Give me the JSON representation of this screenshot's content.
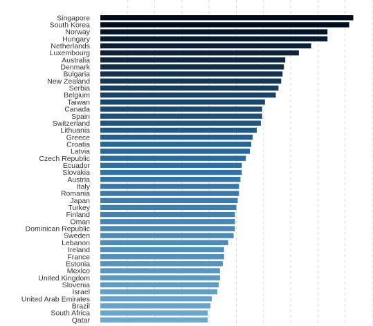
{
  "chart_data": {
    "type": "bar",
    "orientation": "horizontal",
    "categories": [
      "Singapore",
      "South Korea",
      "Norway",
      "Hungary",
      "Netherlands",
      "Luxembourg",
      "Australia",
      "Denmark",
      "Bulgaria",
      "New Zealand",
      "Serbia",
      "Belgium",
      "Taiwan",
      "Canada",
      "Spain",
      "Switzerland",
      "Lithuania",
      "Greece",
      "Croatia",
      "Latvia",
      "Czech Republic",
      "Ecuador",
      "Slovakia",
      "Austria",
      "Italy",
      "Romania",
      "Japan",
      "Turkey",
      "Finland",
      "Oman",
      "Dominican Republic",
      "Sweden",
      "Lebanon",
      "Ireland",
      "France",
      "Estonia",
      "Mexico",
      "United Kingdom",
      "Slovenia",
      "Israel",
      "United Arab Emirates",
      "Brazil",
      "South Africa",
      "Qatar"
    ],
    "values": [
      93,
      91.5,
      83.5,
      83.5,
      77.5,
      73,
      68,
      67.5,
      67,
      66.5,
      65.5,
      64.5,
      60.5,
      59.5,
      59.5,
      59,
      57.5,
      56,
      55.5,
      55,
      53.5,
      52,
      52,
      51.5,
      51,
      51,
      50.5,
      50,
      49.5,
      49.5,
      49.5,
      49,
      47,
      45.5,
      45.5,
      45,
      44,
      44,
      43.5,
      43,
      41,
      40.5,
      39.5,
      39.5
    ],
    "xlim": [
      0,
      100
    ],
    "grid": true,
    "grid_ticks": [
      10,
      20,
      30,
      40,
      50,
      60,
      70,
      80,
      90,
      100
    ],
    "title": "",
    "xlabel": "",
    "ylabel": "",
    "colors": {
      "bar_darkest": "#010a18",
      "bar_mid": "#2a6a9c",
      "bar_lightest": "#6fa8cd",
      "grid": "#d8d8d8",
      "label_text": "#333333"
    }
  }
}
